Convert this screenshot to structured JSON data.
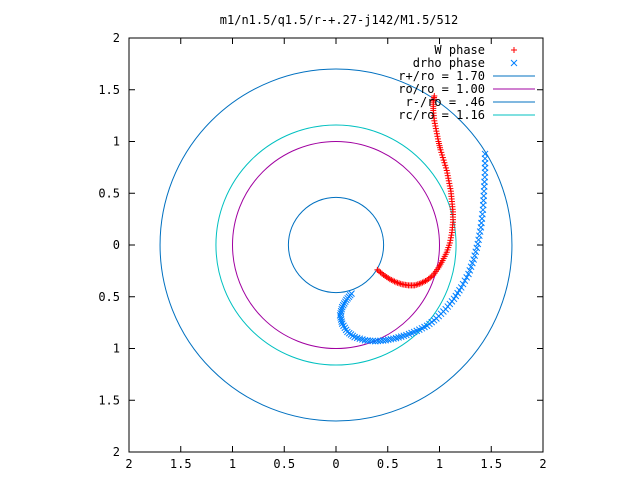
{
  "chart_data": {
    "type": "scatter",
    "title": "m1/n1.5/q1.5/r-+.27-j142/M1.5/512",
    "xlim": [
      -2,
      2
    ],
    "ylim": [
      -2,
      2
    ],
    "x_ticks": [
      "2",
      "1.5",
      "1",
      "0.5",
      "0",
      "0.5",
      "1",
      "1.5",
      "2"
    ],
    "y_ticks": [
      "2",
      "1.5",
      "1",
      "0.5",
      "0",
      "0.5",
      "1",
      "1.5",
      "2"
    ],
    "grid": false,
    "legend_position": "top-right",
    "series": [
      {
        "name": "W phase",
        "kind": "points",
        "marker": "+",
        "color": "#ff0000",
        "points": [
          [
            0.4,
            -0.24
          ],
          [
            0.46,
            -0.29
          ],
          [
            0.52,
            -0.33
          ],
          [
            0.58,
            -0.36
          ],
          [
            0.64,
            -0.38
          ],
          [
            0.7,
            -0.39
          ],
          [
            0.76,
            -0.39
          ],
          [
            0.82,
            -0.37
          ],
          [
            0.88,
            -0.34
          ],
          [
            0.94,
            -0.29
          ],
          [
            0.99,
            -0.22
          ],
          [
            1.03,
            -0.15
          ],
          [
            1.07,
            -0.07
          ],
          [
            1.1,
            0.02
          ],
          [
            1.12,
            0.12
          ],
          [
            1.13,
            0.22
          ],
          [
            1.13,
            0.32
          ],
          [
            1.12,
            0.42
          ],
          [
            1.11,
            0.52
          ],
          [
            1.09,
            0.62
          ],
          [
            1.07,
            0.72
          ],
          [
            1.04,
            0.82
          ],
          [
            1.01,
            0.92
          ],
          [
            0.99,
            1.0
          ],
          [
            0.97,
            1.1
          ],
          [
            0.95,
            1.2
          ],
          [
            0.94,
            1.3
          ],
          [
            0.94,
            1.38
          ],
          [
            0.95,
            1.44
          ]
        ]
      },
      {
        "name": "drho phase",
        "kind": "points",
        "marker": "x",
        "color": "#0080ff",
        "points": [
          [
            0.15,
            -0.47
          ],
          [
            0.1,
            -0.53
          ],
          [
            0.06,
            -0.6
          ],
          [
            0.04,
            -0.68
          ],
          [
            0.06,
            -0.76
          ],
          [
            0.11,
            -0.84
          ],
          [
            0.18,
            -0.89
          ],
          [
            0.28,
            -0.92
          ],
          [
            0.38,
            -0.93
          ],
          [
            0.48,
            -0.92
          ],
          [
            0.58,
            -0.9
          ],
          [
            0.68,
            -0.87
          ],
          [
            0.78,
            -0.83
          ],
          [
            0.88,
            -0.78
          ],
          [
            0.97,
            -0.71
          ],
          [
            1.06,
            -0.62
          ],
          [
            1.14,
            -0.52
          ],
          [
            1.21,
            -0.41
          ],
          [
            1.28,
            -0.28
          ],
          [
            1.33,
            -0.14
          ],
          [
            1.37,
            0.01
          ],
          [
            1.4,
            0.17
          ],
          [
            1.42,
            0.34
          ],
          [
            1.43,
            0.52
          ],
          [
            1.44,
            0.7
          ],
          [
            1.44,
            0.88
          ]
        ]
      },
      {
        "name": "r+/ro = 1.70",
        "kind": "circle",
        "radius": 1.7,
        "color": "#0070c0"
      },
      {
        "name": "ro/ro = 1.00",
        "kind": "circle",
        "radius": 1.0,
        "color": "#a000a0"
      },
      {
        "name": "r-/ro = .46",
        "kind": "circle",
        "radius": 0.46,
        "color": "#0070c0"
      },
      {
        "name": "rc/ro = 1.16",
        "kind": "circle",
        "radius": 1.16,
        "color": "#00c0c0"
      }
    ]
  }
}
